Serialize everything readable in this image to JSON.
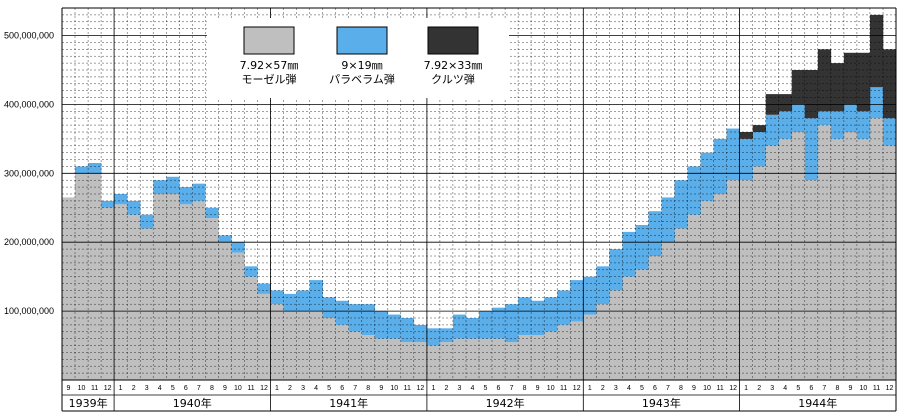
{
  "chart_data": {
    "type": "bar",
    "stacked": true,
    "y_ticks": [
      "100,000,000",
      "200,000,000",
      "300,000,000",
      "400,000,000",
      "500,000,000"
    ],
    "y_tick_values": [
      100000000,
      200000000,
      300000000,
      400000000,
      500000000
    ],
    "ylim": [
      0,
      540000000
    ],
    "grid": true,
    "legend_position": "top-center",
    "years": [
      {
        "label": "1939年",
        "months": [
          "9",
          "10",
          "11",
          "12"
        ]
      },
      {
        "label": "1940年",
        "months": [
          "1",
          "2",
          "3",
          "4",
          "5",
          "6",
          "7",
          "8",
          "9",
          "10",
          "11",
          "12"
        ]
      },
      {
        "label": "1941年",
        "months": [
          "1",
          "2",
          "3",
          "4",
          "5",
          "6",
          "7",
          "8",
          "9",
          "10",
          "11",
          "12"
        ]
      },
      {
        "label": "1942年",
        "months": [
          "1",
          "2",
          "3",
          "4",
          "5",
          "6",
          "7",
          "8",
          "9",
          "10",
          "11",
          "12"
        ]
      },
      {
        "label": "1943年",
        "months": [
          "1",
          "2",
          "3",
          "4",
          "5",
          "6",
          "7",
          "8",
          "9",
          "10",
          "11",
          "12"
        ]
      },
      {
        "label": "1944年",
        "months": [
          "1",
          "2",
          "3",
          "4",
          "5",
          "6",
          "7",
          "8",
          "9",
          "10",
          "11",
          "12"
        ]
      }
    ],
    "series": [
      {
        "name": "7.92×57㎜ モーゼル弾",
        "legend_lines": [
          "7.92×57㎜",
          "モーゼル弾"
        ],
        "color": "#bfbfbf",
        "values": [
          265000000,
          300000000,
          300000000,
          250000000,
          255000000,
          240000000,
          220000000,
          270000000,
          270000000,
          255000000,
          260000000,
          235000000,
          200000000,
          185000000,
          150000000,
          125000000,
          110000000,
          100000000,
          100000000,
          100000000,
          90000000,
          80000000,
          70000000,
          65000000,
          60000000,
          60000000,
          55000000,
          55000000,
          50000000,
          55000000,
          60000000,
          60000000,
          60000000,
          60000000,
          55000000,
          65000000,
          65000000,
          70000000,
          80000000,
          85000000,
          95000000,
          110000000,
          130000000,
          150000000,
          160000000,
          180000000,
          200000000,
          220000000,
          240000000,
          260000000,
          270000000,
          290000000,
          290000000,
          310000000,
          340000000,
          350000000,
          360000000,
          290000000,
          370000000,
          350000000,
          360000000,
          350000000,
          380000000,
          340000000
        ]
      },
      {
        "name": "9×19㎜ パラベラム弾",
        "legend_lines": [
          "9×19㎜",
          "パラベラム弾"
        ],
        "color": "#5aaeea",
        "values": [
          0,
          10000000,
          15000000,
          10000000,
          15000000,
          20000000,
          20000000,
          20000000,
          25000000,
          25000000,
          25000000,
          15000000,
          10000000,
          15000000,
          15000000,
          15000000,
          20000000,
          25000000,
          30000000,
          45000000,
          30000000,
          35000000,
          40000000,
          45000000,
          40000000,
          35000000,
          35000000,
          25000000,
          25000000,
          20000000,
          35000000,
          30000000,
          40000000,
          45000000,
          55000000,
          55000000,
          50000000,
          50000000,
          50000000,
          60000000,
          55000000,
          55000000,
          60000000,
          65000000,
          65000000,
          65000000,
          65000000,
          70000000,
          70000000,
          70000000,
          80000000,
          75000000,
          60000000,
          50000000,
          45000000,
          40000000,
          40000000,
          90000000,
          20000000,
          40000000,
          40000000,
          40000000,
          45000000,
          40000000
        ]
      },
      {
        "name": "7.92×33㎜ クルツ弾",
        "legend_lines": [
          "7.92×33㎜",
          "クルツ弾"
        ],
        "color": "#333333",
        "values": [
          0,
          0,
          0,
          0,
          0,
          0,
          0,
          0,
          0,
          0,
          0,
          0,
          0,
          0,
          0,
          0,
          0,
          0,
          0,
          0,
          0,
          0,
          0,
          0,
          0,
          0,
          0,
          0,
          0,
          0,
          0,
          0,
          0,
          0,
          0,
          0,
          0,
          0,
          0,
          0,
          0,
          0,
          0,
          0,
          0,
          0,
          0,
          0,
          0,
          0,
          0,
          0,
          10000000,
          10000000,
          30000000,
          25000000,
          50000000,
          70000000,
          90000000,
          70000000,
          75000000,
          85000000,
          105000000,
          100000000
        ]
      }
    ]
  }
}
